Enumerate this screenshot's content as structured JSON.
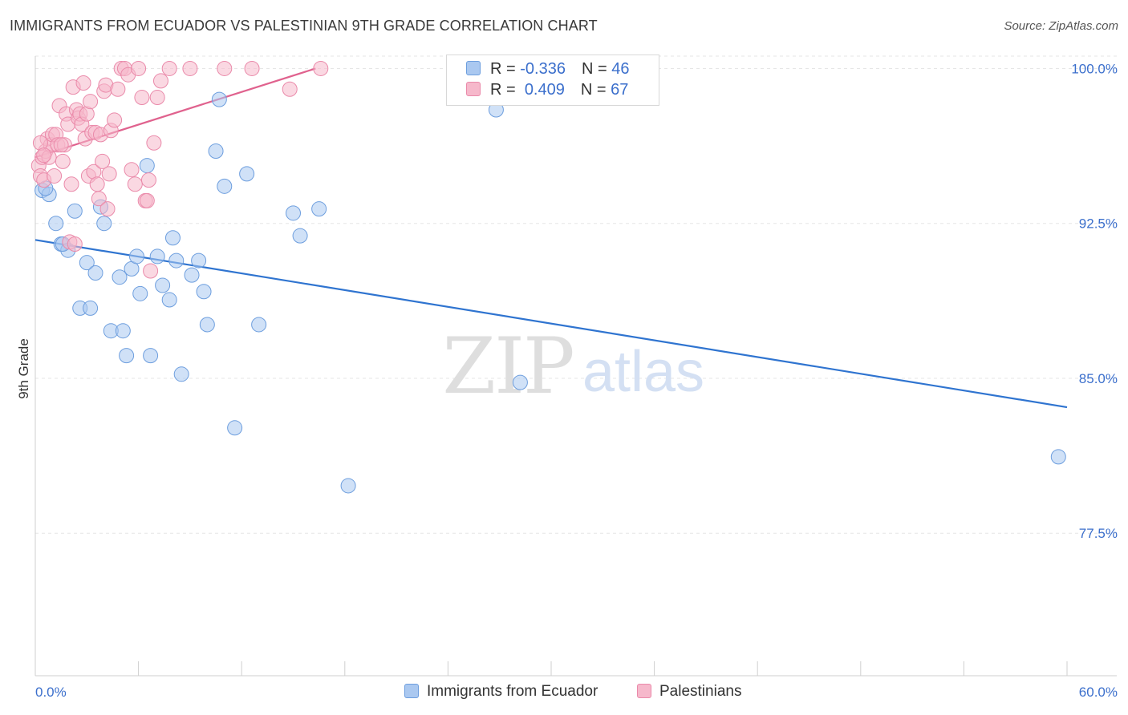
{
  "header": {
    "title": "IMMIGRANTS FROM ECUADOR VS PALESTINIAN 9TH GRADE CORRELATION CHART",
    "source": "Source: ZipAtlas.com"
  },
  "watermark": {
    "zip": "ZIP",
    "atlas": "atlas"
  },
  "legend": {
    "rows": [
      {
        "r_label": "R =",
        "r_value": "-0.336",
        "n_label": "N =",
        "n_value": "46"
      },
      {
        "r_label": "R =",
        "r_value": "0.409",
        "n_label": "N =",
        "n_value": "67"
      }
    ]
  },
  "bottom_legend": {
    "ecuador": "Immigrants from Ecuador",
    "palestinians": "Palestinians"
  },
  "chart_data": {
    "type": "scatter",
    "ylabel": "9th Grade",
    "xlabel": "",
    "xlim": [
      0,
      60
    ],
    "ylim": [
      70.6,
      100.6
    ],
    "x_tick_labels": [
      "0.0%",
      "60.0%"
    ],
    "y_ticks": [
      77.5,
      85.0,
      92.5,
      100.0
    ],
    "y_tick_labels": [
      "77.5%",
      "85.0%",
      "92.5%",
      "100.0%"
    ],
    "grid": true,
    "legend_position": "top-center",
    "colors": {
      "ecuador_fill": "#aac8f0",
      "ecuador_stroke": "#6d9ede",
      "ecuador_line": "#2f74d0",
      "palestinians_fill": "#f6b8cb",
      "palestinians_stroke": "#ea8aaa",
      "palestinians_line": "#e0628e"
    },
    "series": [
      {
        "name": "Immigrants from Ecuador",
        "trend": {
          "x": [
            0,
            60
          ],
          "y": [
            91.7,
            83.6
          ]
        },
        "points": [
          [
            0.4,
            94.1
          ],
          [
            0.8,
            93.9
          ],
          [
            1.2,
            92.5
          ],
          [
            1.5,
            91.5
          ],
          [
            1.9,
            91.2
          ],
          [
            2.3,
            93.1
          ],
          [
            2.6,
            88.4
          ],
          [
            3.0,
            90.6
          ],
          [
            3.2,
            88.4
          ],
          [
            3.5,
            90.1
          ],
          [
            3.8,
            93.3
          ],
          [
            4.0,
            92.5
          ],
          [
            4.4,
            87.3
          ],
          [
            4.9,
            89.9
          ],
          [
            5.1,
            87.3
          ],
          [
            5.3,
            86.1
          ],
          [
            5.6,
            90.3
          ],
          [
            5.9,
            90.9
          ],
          [
            6.1,
            89.1
          ],
          [
            6.5,
            95.3
          ],
          [
            6.7,
            86.1
          ],
          [
            7.1,
            90.9
          ],
          [
            7.4,
            89.5
          ],
          [
            7.8,
            88.8
          ],
          [
            8.0,
            91.8
          ],
          [
            8.2,
            90.7
          ],
          [
            8.5,
            85.2
          ],
          [
            9.1,
            90.0
          ],
          [
            9.5,
            90.7
          ],
          [
            9.8,
            89.2
          ],
          [
            10.0,
            87.6
          ],
          [
            10.5,
            96.0
          ],
          [
            10.7,
            98.5
          ],
          [
            11.0,
            94.3
          ],
          [
            11.6,
            82.6
          ],
          [
            12.3,
            94.9
          ],
          [
            13.0,
            87.6
          ],
          [
            15.0,
            93.0
          ],
          [
            15.4,
            91.9
          ],
          [
            16.5,
            93.2
          ],
          [
            18.2,
            79.8
          ],
          [
            26.8,
            98.0
          ],
          [
            28.2,
            84.8
          ],
          [
            59.5,
            81.2
          ],
          [
            1.6,
            91.5
          ],
          [
            0.6,
            94.2
          ]
        ]
      },
      {
        "name": "Palestinians",
        "trend": {
          "x": [
            0,
            16.3
          ],
          "y": [
            95.7,
            100.0
          ]
        },
        "points": [
          [
            0.2,
            95.3
          ],
          [
            0.3,
            94.8
          ],
          [
            0.4,
            95.7
          ],
          [
            0.5,
            94.6
          ],
          [
            0.6,
            96.0
          ],
          [
            0.7,
            96.6
          ],
          [
            0.8,
            95.7
          ],
          [
            0.9,
            96.3
          ],
          [
            1.0,
            96.8
          ],
          [
            1.1,
            94.8
          ],
          [
            1.2,
            96.8
          ],
          [
            1.3,
            96.3
          ],
          [
            1.4,
            98.2
          ],
          [
            1.6,
            95.5
          ],
          [
            1.7,
            96.3
          ],
          [
            1.8,
            97.8
          ],
          [
            1.9,
            97.3
          ],
          [
            2.0,
            91.6
          ],
          [
            2.1,
            94.4
          ],
          [
            2.2,
            99.1
          ],
          [
            2.4,
            98.0
          ],
          [
            2.5,
            97.6
          ],
          [
            2.6,
            97.8
          ],
          [
            2.7,
            97.3
          ],
          [
            2.8,
            99.3
          ],
          [
            2.9,
            96.6
          ],
          [
            3.0,
            97.8
          ],
          [
            3.1,
            94.8
          ],
          [
            3.2,
            98.4
          ],
          [
            3.3,
            96.9
          ],
          [
            3.4,
            95.0
          ],
          [
            3.5,
            96.9
          ],
          [
            3.6,
            94.4
          ],
          [
            3.7,
            93.7
          ],
          [
            3.8,
            96.8
          ],
          [
            3.9,
            95.5
          ],
          [
            4.0,
            98.9
          ],
          [
            4.1,
            99.2
          ],
          [
            4.2,
            93.2
          ],
          [
            4.3,
            94.9
          ],
          [
            4.4,
            97.0
          ],
          [
            4.6,
            97.5
          ],
          [
            4.8,
            99.0
          ],
          [
            5.0,
            100.0
          ],
          [
            5.2,
            100.0
          ],
          [
            5.4,
            99.7
          ],
          [
            5.6,
            95.1
          ],
          [
            5.8,
            94.4
          ],
          [
            6.0,
            100.0
          ],
          [
            6.2,
            98.6
          ],
          [
            6.4,
            93.6
          ],
          [
            6.5,
            93.6
          ],
          [
            6.6,
            94.6
          ],
          [
            6.7,
            90.2
          ],
          [
            6.9,
            96.4
          ],
          [
            7.1,
            98.6
          ],
          [
            7.3,
            99.4
          ],
          [
            7.8,
            100.0
          ],
          [
            9.0,
            100.0
          ],
          [
            11.0,
            100.0
          ],
          [
            12.6,
            100.0
          ],
          [
            14.8,
            99.0
          ],
          [
            16.6,
            100.0
          ],
          [
            0.3,
            96.4
          ],
          [
            0.5,
            95.8
          ],
          [
            1.5,
            96.3
          ],
          [
            2.3,
            91.5
          ]
        ]
      }
    ]
  }
}
